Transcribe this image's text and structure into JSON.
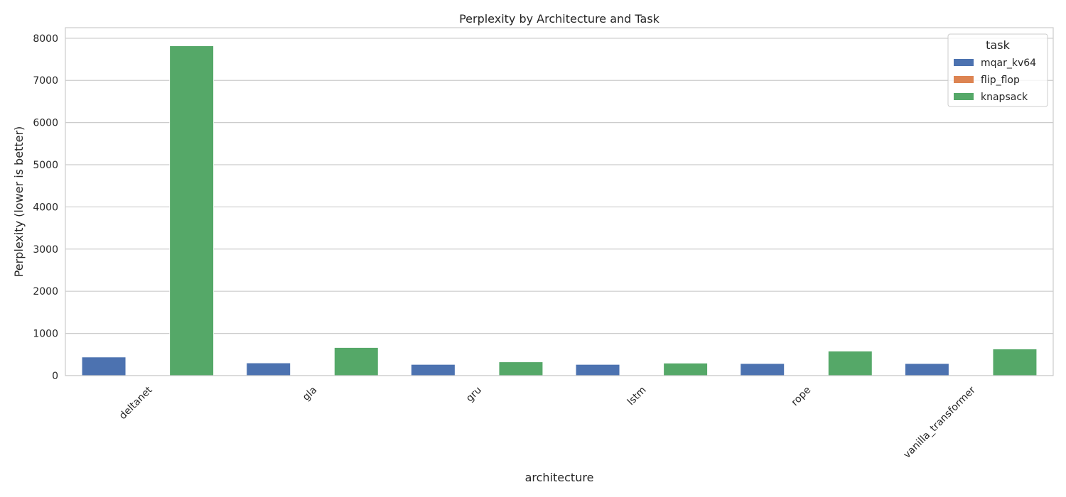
{
  "chart_data": {
    "type": "bar",
    "title": "Perplexity by Architecture and Task",
    "xlabel": "architecture",
    "ylabel": "Perplexity (lower is better)",
    "categories": [
      "deltanet",
      "gla",
      "gru",
      "lstm",
      "rope",
      "vanilla_transformer"
    ],
    "series": [
      {
        "name": "mqar_kv64",
        "color": "#4c72b0",
        "values": [
          440,
          300,
          265,
          265,
          285,
          285
        ]
      },
      {
        "name": "flip_flop",
        "color": "#dd8452",
        "values": [
          1,
          1,
          1,
          1,
          1,
          1
        ]
      },
      {
        "name": "knapsack",
        "color": "#55a868",
        "values": [
          7820,
          665,
          325,
          295,
          580,
          630
        ]
      }
    ],
    "ylim": [
      0,
      8250
    ],
    "yticks": [
      0,
      1000,
      2000,
      3000,
      4000,
      5000,
      6000,
      7000,
      8000
    ],
    "grid": true,
    "legend": {
      "title": "task",
      "placement": "top-right"
    }
  }
}
